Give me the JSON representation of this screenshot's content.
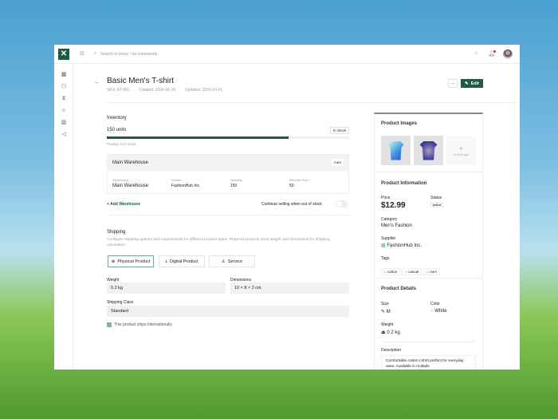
{
  "topbar": {
    "search_placeholder": "Search or press / for commands"
  },
  "header": {
    "title": "Basic Men's T-shirt",
    "sku": "SKU: AT-001",
    "created": "Created: 2024-01-15",
    "updated": "Updated: 2024-10-01",
    "more_label": "···",
    "edit_label": "Edit"
  },
  "inventory": {
    "heading": "Inventory",
    "units": "150 units",
    "stock_badge": "In Stock",
    "stock_fraction": 0.75,
    "stock_note": "Product is in stock",
    "warehouse": {
      "name": "Main Warehouse",
      "mode": "Auto",
      "columns": [
        {
          "label": "Warehouse",
          "value": "Main Warehouse"
        },
        {
          "label": "Vendor",
          "value": "FashionHub Inc."
        },
        {
          "label": "Quantity",
          "value": "150"
        },
        {
          "label": "Reorder Point",
          "value": "50"
        }
      ]
    },
    "add_warehouse": "Add Warehouse",
    "continue_selling": "Continue selling when out of stock",
    "continue_selling_on": false
  },
  "shipping": {
    "heading": "Shipping",
    "description": "Configure shipping options and requirements for different product types. Physical products need weight and dimensions for shipping calculation.",
    "types": [
      "Physical Product",
      "Digital Product",
      "Service"
    ],
    "selected_type": "Physical Product",
    "weight_label": "Weight",
    "weight": "0.2 kg",
    "dimensions_label": "Dimensions",
    "dimensions": "10 × 8 × 2 cm",
    "class_label": "Shipping Class",
    "class": "Standard",
    "international_label": "This product ships internationally",
    "international": true
  },
  "images": {
    "heading": "Product Images",
    "add_label": "Add Image"
  },
  "info": {
    "heading": "Product Information",
    "price_label": "Price",
    "price": "$12.99",
    "status_label": "Status",
    "status": "active",
    "category_label": "Category",
    "category": "Men's Fashion",
    "supplier_label": "Supplier",
    "supplier": "FashionHub Inc.",
    "tags_label": "Tags",
    "tags": [
      "cotton",
      "casual",
      "men"
    ]
  },
  "details": {
    "heading": "Product Details",
    "size_label": "Size",
    "size": "M",
    "color_label": "Color",
    "color": "White",
    "weight_label": "Weight",
    "weight": "0.2 kg",
    "description_label": "Description",
    "description": "Comfortable cotton t-shirt perfect for everyday wear. Available in multiple"
  },
  "colors": {
    "brand": "#1e5b45"
  }
}
